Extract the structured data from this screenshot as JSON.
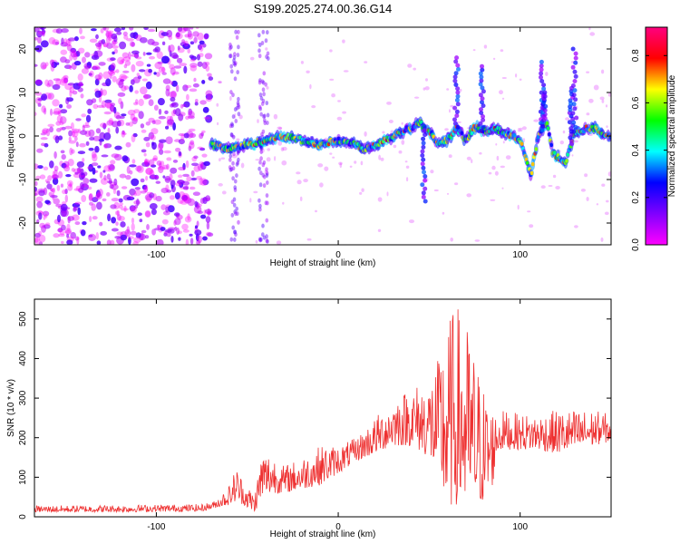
{
  "page": {
    "title": "S199.2025.274.00.36.G14"
  },
  "chart_data": [
    {
      "type": "heatmap",
      "title": "S199.2025.274.00.36.G14",
      "xlabel": "Height of straight line (km)",
      "ylabel": "Frequency (Hz)",
      "xlim": [
        -167,
        150
      ],
      "ylim": [
        -25,
        25
      ],
      "x_ticks": [
        -100,
        0,
        100
      ],
      "y_ticks": [
        -20,
        -10,
        0,
        10,
        20
      ],
      "colorbar": {
        "label": "Normalized spectral amplitude",
        "range": [
          0,
          0.92
        ],
        "ticks": [
          0.0,
          0.2,
          0.4,
          0.6,
          0.8
        ],
        "colormap": [
          "#ff00ff",
          "#8000ff",
          "#0000ff",
          "#00ffff",
          "#00ff00",
          "#ffff00",
          "#ff0000",
          "#ff0080"
        ]
      },
      "noise_region_x": [
        -167,
        -70
      ],
      "ridge": {
        "x": [
          -70,
          -60,
          -50,
          -40,
          -30,
          -20,
          -10,
          0,
          10,
          15,
          20,
          30,
          40,
          45,
          50,
          55,
          60,
          65,
          70,
          75,
          80,
          85,
          90,
          95,
          100,
          103,
          106,
          110,
          115,
          118,
          125,
          130,
          140,
          148
        ],
        "frequency": [
          -2,
          -3,
          -2,
          -1,
          0,
          -1,
          -2,
          -1,
          -2,
          -3,
          -2,
          0,
          2,
          3,
          1,
          -2,
          -1,
          2,
          -1,
          2,
          1,
          2,
          1,
          0,
          -1,
          -5,
          -9,
          0,
          3,
          -4,
          -6,
          1,
          2,
          0
        ]
      },
      "harmonics": [
        {
          "x": 65,
          "frequency": 18
        },
        {
          "x": 79,
          "frequency": 16
        },
        {
          "x": 112,
          "frequency": 17
        },
        {
          "x": 113,
          "frequency": 10
        },
        {
          "x": 128,
          "frequency": 11
        },
        {
          "x": 130,
          "frequency": 20
        },
        {
          "x": 47,
          "frequency": -15
        }
      ],
      "grid": false
    },
    {
      "type": "line",
      "xlabel": "Height of straight line (km)",
      "ylabel": "SNR (10 * v/v)",
      "xlim": [
        -167,
        150
      ],
      "ylim": [
        0,
        550
      ],
      "x_ticks": [
        -100,
        0,
        100
      ],
      "y_ticks": [
        0,
        100,
        200,
        300,
        400,
        500
      ],
      "color": "#ee3030",
      "series": [
        {
          "envelope": {
            "x": [
              -167,
              -120,
              -75,
              -68,
              -60,
              -56,
              -52,
              -46,
              -42,
              -36,
              -30,
              -20,
              -10,
              0,
              10,
              20,
              30,
              40,
              50,
              55,
              60,
              65,
              70,
              75,
              80,
              85,
              87,
              90,
              100,
              110,
              120,
              130,
              140,
              150
            ],
            "low": [
              12,
              12,
              14,
              22,
              30,
              40,
              30,
              10,
              50,
              60,
              60,
              70,
              80,
              110,
              140,
              160,
              180,
              180,
              150,
              100,
              20,
              30,
              30,
              20,
              40,
              80,
              160,
              170,
              170,
              170,
              160,
              170,
              180,
              190
            ],
            "high": [
              28,
              30,
              32,
              40,
              80,
              130,
              90,
              60,
              170,
              160,
              130,
              150,
              180,
              180,
              200,
              250,
              300,
              330,
              350,
              400,
              500,
              540,
              500,
              420,
              330,
              280,
              260,
              270,
              260,
              260,
              270,
              270,
              270,
              260
            ]
          }
        }
      ],
      "grid": false
    }
  ]
}
